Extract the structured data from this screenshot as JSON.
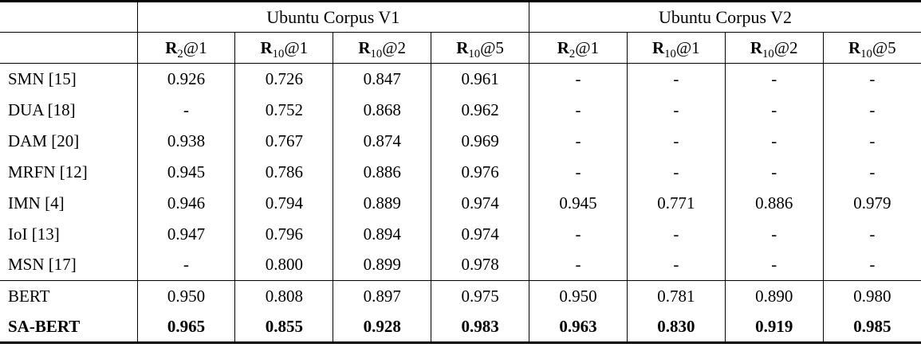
{
  "table": {
    "corner_label": "",
    "groups": [
      {
        "label": "Ubuntu Corpus V1",
        "span": 4
      },
      {
        "label": "Ubuntu Corpus V2",
        "span": 4
      }
    ],
    "metric_headers": [
      {
        "base": "R",
        "sub": "2",
        "suffix": "@1"
      },
      {
        "base": "R",
        "sub": "10",
        "suffix": "@1"
      },
      {
        "base": "R",
        "sub": "10",
        "suffix": "@2"
      },
      {
        "base": "R",
        "sub": "10",
        "suffix": "@5"
      },
      {
        "base": "R",
        "sub": "2",
        "suffix": "@1"
      },
      {
        "base": "R",
        "sub": "10",
        "suffix": "@1"
      },
      {
        "base": "R",
        "sub": "10",
        "suffix": "@2"
      },
      {
        "base": "R",
        "sub": "10",
        "suffix": "@5"
      }
    ],
    "rows": [
      {
        "model": "SMN [15]",
        "bold": false,
        "section_start": false,
        "values": [
          "0.926",
          "0.726",
          "0.847",
          "0.961",
          "-",
          "-",
          "-",
          "-"
        ]
      },
      {
        "model": "DUA [18]",
        "bold": false,
        "section_start": false,
        "values": [
          "-",
          "0.752",
          "0.868",
          "0.962",
          "-",
          "-",
          "-",
          "-"
        ]
      },
      {
        "model": "DAM [20]",
        "bold": false,
        "section_start": false,
        "values": [
          "0.938",
          "0.767",
          "0.874",
          "0.969",
          "-",
          "-",
          "-",
          "-"
        ]
      },
      {
        "model": "MRFN [12]",
        "bold": false,
        "section_start": false,
        "values": [
          "0.945",
          "0.786",
          "0.886",
          "0.976",
          "-",
          "-",
          "-",
          "-"
        ]
      },
      {
        "model": "IMN [4]",
        "bold": false,
        "section_start": false,
        "values": [
          "0.946",
          "0.794",
          "0.889",
          "0.974",
          "0.945",
          "0.771",
          "0.886",
          "0.979"
        ]
      },
      {
        "model": "IoI [13]",
        "bold": false,
        "section_start": false,
        "values": [
          "0.947",
          "0.796",
          "0.894",
          "0.974",
          "-",
          "-",
          "-",
          "-"
        ]
      },
      {
        "model": "MSN [17]",
        "bold": false,
        "section_start": false,
        "values": [
          "-",
          "0.800",
          "0.899",
          "0.978",
          "-",
          "-",
          "-",
          "-"
        ]
      },
      {
        "model": "BERT",
        "bold": false,
        "section_start": true,
        "values": [
          "0.950",
          "0.808",
          "0.897",
          "0.975",
          "0.950",
          "0.781",
          "0.890",
          "0.980"
        ]
      },
      {
        "model": "SA-BERT",
        "bold": true,
        "section_start": false,
        "values": [
          "0.965",
          "0.855",
          "0.928",
          "0.983",
          "0.963",
          "0.830",
          "0.919",
          "0.985"
        ]
      }
    ],
    "colors": {
      "text": "#000000",
      "background": "#ffffff",
      "rule": "#000000"
    }
  }
}
